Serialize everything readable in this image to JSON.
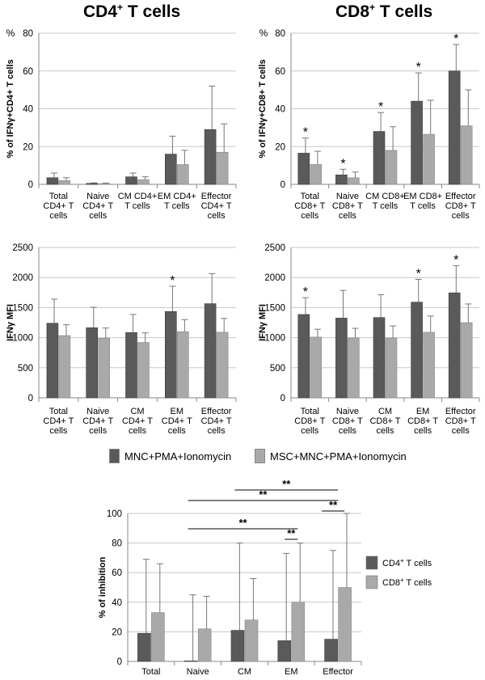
{
  "titles": {
    "left": "CD4",
    "left_sup": "+",
    "left_suffix": " T cells",
    "right": "CD8",
    "right_sup": "+",
    "right_suffix": " T cells"
  },
  "legend_top": {
    "series1": "MNC+PMA+Ionomycin",
    "series2": "MSC+MNC+PMA+Ionomycin"
  },
  "colors": {
    "series1": "#5a5a5a",
    "series2": "#a9a9a9",
    "grid": "#c8c8c8",
    "axis": "#888888",
    "error": "#777777"
  },
  "chart_data": [
    {
      "id": "cd4-pct",
      "type": "bar",
      "ylabel": "% of IFNγ+CD4+ T cells",
      "unit_label": "%",
      "ylim": [
        0,
        80
      ],
      "yticks": [
        0,
        20,
        40,
        60,
        80
      ],
      "categories": [
        "Total CD4+ T cells",
        "Naive CD4+ T cells",
        "CM CD4+ T cells",
        "EM CD4+ T cells",
        "Effector CD4+ T cells"
      ],
      "category_lines": [
        [
          "Total",
          "CD4+ T",
          "cells"
        ],
        [
          "Naive",
          "CD4+ T",
          "cells"
        ],
        [
          "CM CD4+",
          "T cells"
        ],
        [
          "EM CD4+",
          "T cells"
        ],
        [
          "Effector",
          "CD4+ T",
          "cells"
        ]
      ],
      "series": [
        {
          "name": "MNC+PMA+Ionomycin",
          "values": [
            3.5,
            0.5,
            4,
            16,
            29
          ],
          "errors": [
            2.5,
            0.3,
            2,
            9.5,
            23
          ]
        },
        {
          "name": "MSC+MNC+PMA+Ionomycin",
          "values": [
            2,
            0.4,
            2.5,
            10.5,
            17
          ],
          "errors": [
            1.5,
            0.3,
            1.5,
            7.5,
            15
          ]
        }
      ],
      "stars": []
    },
    {
      "id": "cd8-pct",
      "type": "bar",
      "ylabel": "% of IFNγ+CD8+ T cells",
      "unit_label": "%",
      "ylim": [
        0,
        80
      ],
      "yticks": [
        0,
        20,
        40,
        60,
        80
      ],
      "categories": [
        "Total CD8+ T cells",
        "Naive CD8+ T cells",
        "CM CD8+ T cells",
        "EM CD8+ T cells",
        "Effector CD8+ T cells"
      ],
      "category_lines": [
        [
          "Total",
          "CD8+ T",
          "cells"
        ],
        [
          "Naive",
          "CD8+ T",
          "cells"
        ],
        [
          "CM CD8+",
          "T cells"
        ],
        [
          "EM CD8+",
          "T cells"
        ],
        [
          "Effector",
          "CD8+ T",
          "cells"
        ]
      ],
      "series": [
        {
          "name": "MNC+PMA+Ionomycin",
          "values": [
            16.5,
            5,
            28,
            44,
            60
          ],
          "errors": [
            8,
            3,
            10,
            15,
            14
          ]
        },
        {
          "name": "MSC+MNC+PMA+Ionomycin",
          "values": [
            10.5,
            3.5,
            18,
            26.5,
            31
          ],
          "errors": [
            7,
            3,
            12.5,
            18,
            19
          ]
        }
      ],
      "stars": [
        0,
        1,
        2,
        3,
        4
      ]
    },
    {
      "id": "cd4-mfi",
      "type": "bar",
      "ylabel": "IFNγ MFI",
      "unit_label": "",
      "ylim": [
        0,
        2500
      ],
      "yticks": [
        0,
        500,
        1000,
        1500,
        2000,
        2500
      ],
      "categories": [
        "Total CD4+ T cells",
        "Naive CD4+ T cells",
        "CM CD4+ T cells",
        "EM CD4+ T cells",
        "Effector CD4+ T cells"
      ],
      "category_lines": [
        [
          "Total",
          "CD4+ T",
          "cells"
        ],
        [
          "Naive",
          "CD4+ T",
          "cells"
        ],
        [
          "CM",
          "CD4+ T",
          "cells"
        ],
        [
          "EM",
          "CD4+ T",
          "cells"
        ],
        [
          "Effector",
          "CD4+ T",
          "cells"
        ]
      ],
      "series": [
        {
          "name": "MNC+PMA+Ionomycin",
          "values": [
            1240,
            1165,
            1085,
            1435,
            1565
          ],
          "errors": [
            400,
            340,
            300,
            420,
            500
          ]
        },
        {
          "name": "MSC+MNC+PMA+Ionomycin",
          "values": [
            1035,
            990,
            920,
            1100,
            1090
          ],
          "errors": [
            180,
            170,
            160,
            200,
            230
          ]
        }
      ],
      "stars": [
        3
      ]
    },
    {
      "id": "cd8-mfi",
      "type": "bar",
      "ylabel": "IFNγ MFI",
      "unit_label": "",
      "ylim": [
        0,
        2500
      ],
      "yticks": [
        0,
        500,
        1000,
        1500,
        2000,
        2500
      ],
      "categories": [
        "Total CD8+ T cells",
        "Naive CD8+ T cells",
        "CM CD8+ T cells",
        "EM CD8+ T cells",
        "Effector CD8+ T cells"
      ],
      "category_lines": [
        [
          "Total",
          "CD8+ T",
          "cells"
        ],
        [
          "Naive",
          "CD8+ T",
          "cells"
        ],
        [
          "CM",
          "CD8+ T",
          "cells"
        ],
        [
          "EM",
          "CD8+ T",
          "cells"
        ],
        [
          "Effector",
          "CD8+ T",
          "cells"
        ]
      ],
      "series": [
        {
          "name": "MNC+PMA+Ionomycin",
          "values": [
            1385,
            1325,
            1335,
            1590,
            1745
          ],
          "errors": [
            280,
            460,
            380,
            380,
            450
          ]
        },
        {
          "name": "MSC+MNC+PMA+Ionomycin",
          "values": [
            1010,
            995,
            995,
            1090,
            1250
          ],
          "errors": [
            130,
            160,
            200,
            270,
            310
          ]
        }
      ],
      "stars": [
        0,
        3,
        4
      ]
    },
    {
      "id": "inhibition",
      "type": "bar",
      "ylabel": "% of inhibition",
      "unit_label": "",
      "ylim": [
        0,
        100
      ],
      "yticks": [
        0,
        20,
        40,
        60,
        80,
        100
      ],
      "categories": [
        "Total",
        "Naive",
        "CM",
        "EM",
        "Effector"
      ],
      "category_lines": [
        [
          "Total"
        ],
        [
          "Naive"
        ],
        [
          "CM"
        ],
        [
          "EM"
        ],
        [
          "Effector"
        ]
      ],
      "series": [
        {
          "name": "CD4+ T cells",
          "values": [
            19,
            0,
            21,
            14,
            15
          ],
          "errors": [
            50,
            45,
            59,
            59,
            60
          ]
        },
        {
          "name": "CD8+ T cells",
          "values": [
            33,
            22,
            28,
            40,
            50
          ],
          "errors": [
            33,
            22,
            28,
            40,
            50
          ]
        }
      ],
      "legend": [
        {
          "base": "CD4",
          "sup": "+",
          "suffix": " T cells"
        },
        {
          "base": "CD8",
          "sup": "+",
          "suffix": " T cells"
        }
      ],
      "significance": [
        {
          "from": "CM",
          "to": "Effector",
          "label": "**"
        },
        {
          "from": "Naive",
          "to": "Effector",
          "label": "**"
        },
        {
          "from": "Naive",
          "to": "EM",
          "label": "**"
        },
        {
          "from": "EM",
          "to": "EM",
          "label": "**"
        },
        {
          "from": "Effector",
          "to": "Effector",
          "label": "**"
        }
      ]
    }
  ]
}
